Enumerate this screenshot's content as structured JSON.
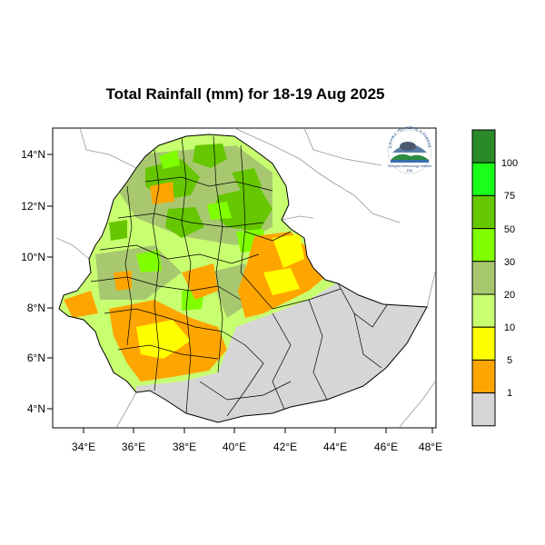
{
  "title": "Total Rainfall (mm) for 18-19 Aug 2025",
  "x_axis_ticks": [
    "34°E",
    "36°E",
    "38°E",
    "40°E",
    "42°E",
    "44°E",
    "46°E",
    "48°E"
  ],
  "y_axis_ticks": [
    "14°N",
    "12°N",
    "10°N",
    "8°N",
    "6°N",
    "4°N"
  ],
  "legend": {
    "labels": [
      "100",
      "75",
      "50",
      "30",
      "20",
      "10",
      "5",
      "1"
    ],
    "colors": [
      "#2a8a2a",
      "#19ff19",
      "#66c700",
      "#80ff00",
      "#a8c870",
      "#c8ff70",
      "#ffff00",
      "#ffa500",
      "#d6d6d6"
    ]
  },
  "logo": {
    "arc_text": "ኢትዮጵያ ሜቲዎሮሎጂ ኢንስቲትዩት",
    "caption": "Ethiopian Meteorology Institute",
    "sub": "EMI"
  },
  "colors": {
    "no_rain": "#d6d6d6",
    "border": "#000000",
    "neighbor_lines": "#999999"
  }
}
